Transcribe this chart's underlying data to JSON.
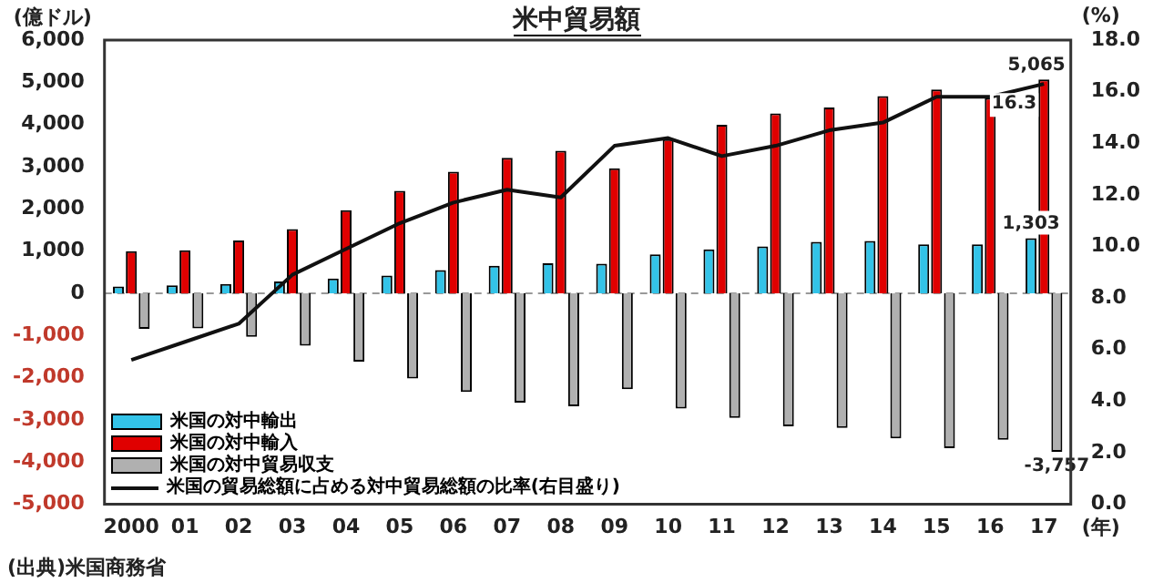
{
  "chart_data": {
    "type": "bar",
    "title": "米中貿易額",
    "ylabel": "(億ドル)",
    "y2label": "(%)",
    "xlabel": "(年)",
    "annotations": [
      "(出典)米国商務省"
    ],
    "categories": [
      "2000",
      "01",
      "02",
      "03",
      "04",
      "05",
      "06",
      "07",
      "08",
      "09",
      "10",
      "11",
      "12",
      "13",
      "14",
      "15",
      "16",
      "17"
    ],
    "series": [
      {
        "name": "米国の対中輸出",
        "color": "#33c3e8",
        "values": [
          160,
          190,
          220,
          280,
          350,
          420,
          550,
          650,
          710,
          700,
          920,
          1040,
          1110,
          1220,
          1240,
          1160,
          1160,
          1303
        ],
        "value_labels": [
          null,
          null,
          null,
          null,
          null,
          null,
          null,
          null,
          null,
          null,
          null,
          null,
          null,
          null,
          null,
          null,
          null,
          "1,303"
        ]
      },
      {
        "name": "米国の対中輸入",
        "color": "#e00000",
        "values": [
          1000,
          1020,
          1250,
          1520,
          1970,
          2430,
          2880,
          3210,
          3380,
          2960,
          3650,
          3990,
          4260,
          4400,
          4670,
          4830,
          4630,
          5065
        ],
        "value_labels": [
          null,
          null,
          null,
          null,
          null,
          null,
          null,
          null,
          null,
          null,
          null,
          null,
          null,
          null,
          null,
          null,
          null,
          "5,065"
        ]
      },
      {
        "name": "米国の対中貿易収支",
        "color": "#b0b0b0",
        "values": [
          -840,
          -830,
          -1030,
          -1240,
          -1620,
          -2020,
          -2340,
          -2590,
          -2680,
          -2270,
          -2730,
          -2950,
          -3150,
          -3190,
          -3440,
          -3670,
          -3470,
          -3757
        ],
        "value_labels": [
          null,
          null,
          null,
          null,
          null,
          null,
          null,
          null,
          null,
          null,
          null,
          null,
          null,
          null,
          null,
          null,
          null,
          "-3,757"
        ]
      },
      {
        "name": "米国の貿易総額に占める対中貿易総額の比率(右目盛り)",
        "type": "line",
        "axis": "y2",
        "color": "#111111",
        "values": [
          5.6,
          6.3,
          7.0,
          8.9,
          9.9,
          10.9,
          11.7,
          12.2,
          11.9,
          13.9,
          14.2,
          13.5,
          13.9,
          14.5,
          14.8,
          15.8,
          15.8,
          16.3
        ],
        "value_labels": [
          null,
          null,
          null,
          null,
          null,
          null,
          null,
          null,
          null,
          null,
          null,
          null,
          null,
          null,
          null,
          null,
          null,
          "16.3"
        ]
      }
    ],
    "ylim": [
      -5000,
      6000
    ],
    "yticks": [
      {
        "value": -5000,
        "label": "-5,000"
      },
      {
        "value": -4000,
        "label": "-4,000"
      },
      {
        "value": -3000,
        "label": "-3,000"
      },
      {
        "value": -2000,
        "label": "-2,000"
      },
      {
        "value": -1000,
        "label": "-1,000"
      },
      0,
      {
        "value": 1000,
        "label": "1,000"
      },
      {
        "value": 2000,
        "label": "2,000"
      },
      {
        "value": 3000,
        "label": "3,000"
      },
      {
        "value": 4000,
        "label": "4,000"
      },
      {
        "value": 5000,
        "label": "5,000"
      },
      {
        "value": 6000,
        "label": "6,000"
      }
    ],
    "y2lim": [
      0,
      18
    ],
    "y2ticks": [
      {
        "value": 0,
        "label": "0.0"
      },
      {
        "value": 2,
        "label": "2.0"
      },
      {
        "value": 4,
        "label": "4.0"
      },
      {
        "value": 6,
        "label": "6.0"
      },
      {
        "value": 8,
        "label": "8.0"
      },
      {
        "value": 10,
        "label": "10.0"
      },
      {
        "value": 12,
        "label": "12.0"
      },
      {
        "value": 14,
        "label": "14.0"
      },
      {
        "value": 16,
        "label": "16.0"
      },
      {
        "value": 18,
        "label": "18.0"
      }
    ],
    "ref_lines": [
      {
        "axis": "y",
        "value": 0,
        "color": "#999999",
        "line_style": "dashed"
      }
    ],
    "grid": false,
    "legend": "bottom left",
    "marker": "none",
    "line_style": "solid"
  }
}
